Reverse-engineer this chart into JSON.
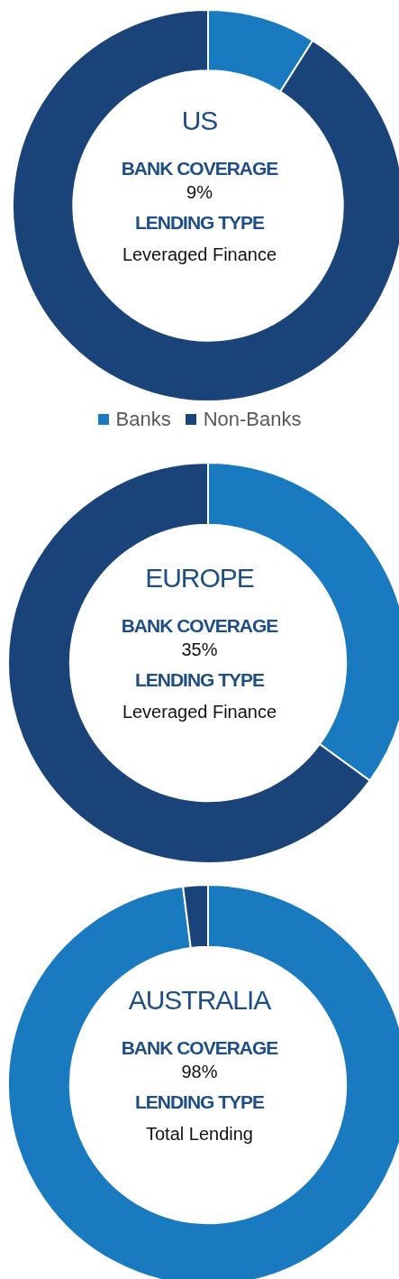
{
  "chart_data": [
    {
      "type": "donut",
      "title": "US",
      "categories": [
        "Banks",
        "Non-Banks"
      ],
      "values": [
        9,
        91
      ],
      "colors": [
        "#1a7abf",
        "#1a4479"
      ],
      "legend": "bottom",
      "annotations": [
        "BANK COVERAGE",
        "9%",
        "LENDING TYPE",
        "Leveraged Finance"
      ]
    },
    {
      "type": "donut",
      "title": "EUROPE",
      "categories": [
        null,
        null
      ],
      "values": [
        35,
        65
      ],
      "colors": [
        "#1a7abf",
        "#1a4479"
      ],
      "annotations": [
        "BANK COVERAGE",
        "35%",
        "LENDING TYPE",
        "Leveraged Finance"
      ]
    },
    {
      "type": "donut",
      "title": "AUSTRALIA",
      "categories": [
        null,
        null
      ],
      "values": [
        98,
        2
      ],
      "colors": [
        "#1a7abf",
        "#1a4479"
      ],
      "annotations": [
        "BANK COVERAGE",
        "98%",
        "LENDING TYPE",
        "Total Lending"
      ]
    }
  ]
}
